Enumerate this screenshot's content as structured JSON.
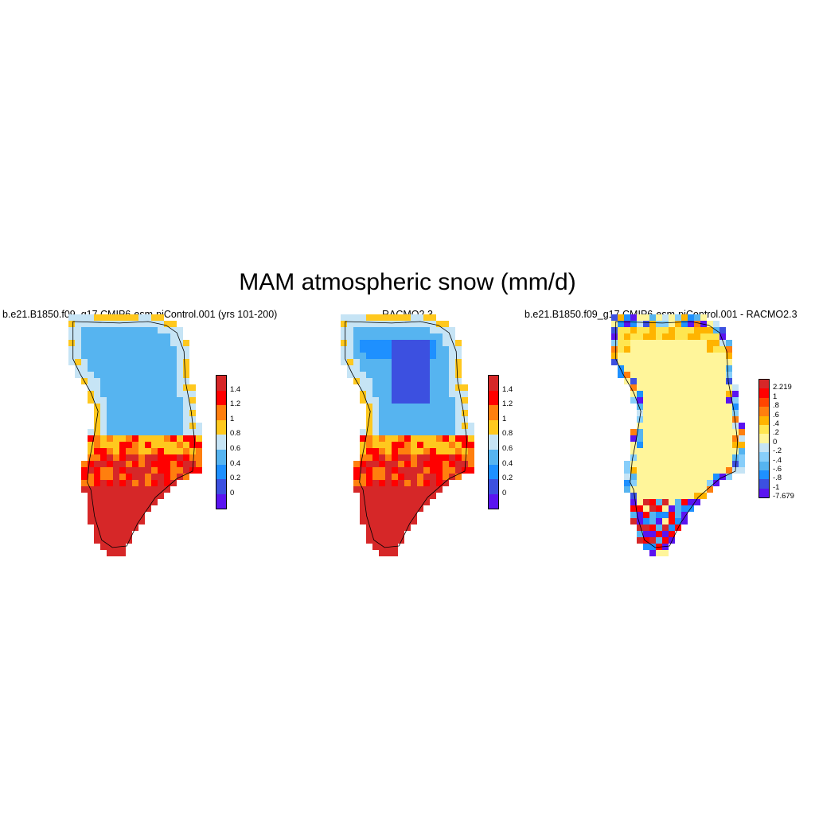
{
  "figure": {
    "title": "MAM atmospheric snow (mm/d)"
  },
  "panels": [
    {
      "title": "b.e21.B1850.f09_g17.CMIP6-esm-piControl.001 (yrs 101-200)",
      "colorbar": {
        "colors": [
          "#d62728",
          "#ff0000",
          "#ff7f0e",
          "#ffc81e",
          "#c6e4f5",
          "#56b4f0",
          "#1e90ff",
          "#3c50e0",
          "#5a14f0"
        ],
        "labels": [
          "1.4",
          "1.2",
          "1",
          "0.8",
          "0.6",
          "0.4",
          "0.2",
          "0"
        ]
      }
    },
    {
      "title": "RACMO2.3",
      "colorbar": {
        "colors": [
          "#d62728",
          "#ff0000",
          "#ff7f0e",
          "#ffc81e",
          "#c6e4f5",
          "#56b4f0",
          "#1e90ff",
          "#3c50e0",
          "#5a14f0"
        ],
        "labels": [
          "1.4",
          "1.2",
          "1",
          "0.8",
          "0.6",
          "0.4",
          "0.2",
          "0"
        ]
      }
    },
    {
      "title": "b.e21.B1850.f09_g17.CMIP6-esm-piControl.001 - RACMO2.3",
      "colorbar": {
        "colors": [
          "#d62728",
          "#ff0000",
          "#ff4500",
          "#ff7f0e",
          "#ffb400",
          "#ffe650",
          "#fff59a",
          "#c6e4f5",
          "#87cefa",
          "#56b4f0",
          "#1e90ff",
          "#3c50e0",
          "#5a14f0"
        ],
        "labels": [
          "2.219",
          "1",
          ".8",
          ".6",
          ".4",
          ".2",
          "0",
          "-.2",
          "-.4",
          "-.6",
          "-.8",
          "-1",
          "-7.679"
        ]
      }
    }
  ]
}
